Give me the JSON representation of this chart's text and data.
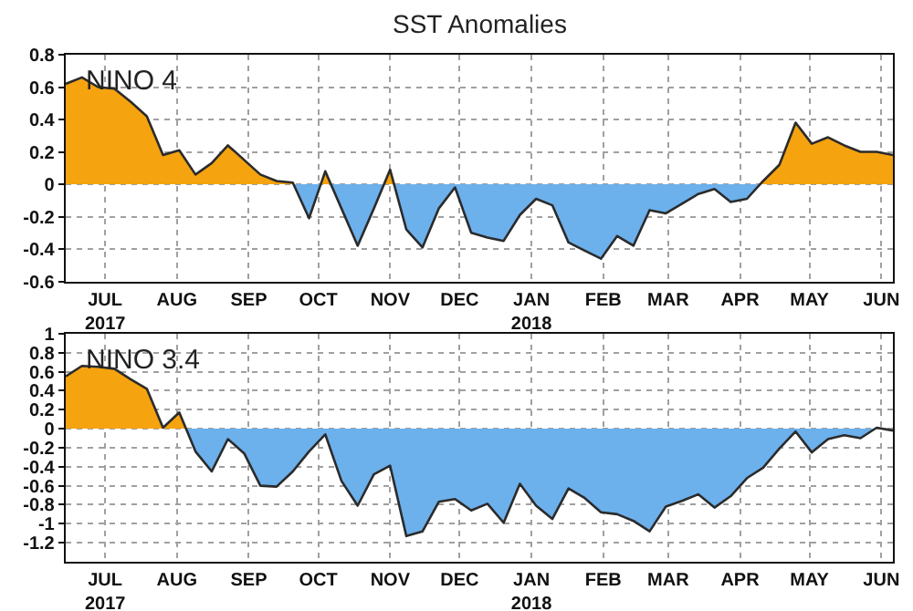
{
  "chart_data": [
    {
      "type": "area",
      "title": "SST Anomalies",
      "annotations": [
        "NINO 4"
      ],
      "x": [
        "2017-06-14",
        "2017-06-21",
        "2017-06-28",
        "2017-07-05",
        "2017-07-12",
        "2017-07-19",
        "2017-07-26",
        "2017-08-02",
        "2017-08-09",
        "2017-08-16",
        "2017-08-23",
        "2017-08-30",
        "2017-09-06",
        "2017-09-13",
        "2017-09-20",
        "2017-09-27",
        "2017-10-04",
        "2017-10-11",
        "2017-10-18",
        "2017-10-25",
        "2017-11-01",
        "2017-11-08",
        "2017-11-15",
        "2017-11-22",
        "2017-11-29",
        "2017-12-06",
        "2017-12-13",
        "2017-12-20",
        "2017-12-27",
        "2018-01-03",
        "2018-01-10",
        "2018-01-17",
        "2018-01-24",
        "2018-01-31",
        "2018-02-07",
        "2018-02-14",
        "2018-02-21",
        "2018-02-28",
        "2018-03-07",
        "2018-03-14",
        "2018-03-21",
        "2018-03-28",
        "2018-04-04",
        "2018-04-11",
        "2018-04-18",
        "2018-04-25",
        "2018-05-02",
        "2018-05-09",
        "2018-05-16",
        "2018-05-23",
        "2018-05-30",
        "2018-06-06"
      ],
      "series": [
        {
          "color": "#2b2b2b",
          "values": [
            0.62,
            0.66,
            0.6,
            0.59,
            0.51,
            0.42,
            0.18,
            0.21,
            0.06,
            0.13,
            0.24,
            0.15,
            0.06,
            0.02,
            0.01,
            -0.21,
            0.08,
            -0.15,
            -0.38,
            -0.15,
            0.09,
            -0.28,
            -0.39,
            -0.15,
            -0.02,
            -0.3,
            -0.33,
            -0.35,
            -0.19,
            -0.09,
            -0.13,
            -0.36,
            -0.41,
            -0.46,
            -0.32,
            -0.38,
            -0.16,
            -0.18,
            -0.12,
            -0.06,
            -0.03,
            -0.11,
            -0.09,
            0.02,
            0.12,
            0.38,
            0.25,
            0.29,
            0.24,
            0.2,
            0.2,
            0.18
          ]
        }
      ],
      "colors": [
        "#f5a30f",
        "#6cb0ec"
      ],
      "xlim": [
        "2017-06-14",
        "2018-06-06"
      ],
      "xticks": [
        {
          "value": "2017-07-01",
          "label": "JUL\n2017"
        },
        {
          "value": "2017-08-01",
          "label": "AUG"
        },
        {
          "value": "2017-09-01",
          "label": "SEP"
        },
        {
          "value": "2017-10-01",
          "label": "OCT"
        },
        {
          "value": "2017-11-01",
          "label": "NOV"
        },
        {
          "value": "2017-12-01",
          "label": "DEC"
        },
        {
          "value": "2018-01-01",
          "label": "JAN\n2018"
        },
        {
          "value": "2018-02-01",
          "label": "FEB"
        },
        {
          "value": "2018-03-01",
          "label": "MAR"
        },
        {
          "value": "2018-04-01",
          "label": "APR"
        },
        {
          "value": "2018-05-01",
          "label": "MAY"
        },
        {
          "value": "2018-06-01",
          "label": "JUN"
        }
      ],
      "ylim": [
        -0.6,
        0.8
      ],
      "yticks": [
        -0.6,
        -0.4,
        -0.2,
        0,
        0.2,
        0.4,
        0.6,
        0.8
      ],
      "grid": true
    },
    {
      "type": "area",
      "annotations": [
        "NINO 3.4"
      ],
      "x": [
        "2017-06-14",
        "2017-06-21",
        "2017-06-28",
        "2017-07-05",
        "2017-07-12",
        "2017-07-19",
        "2017-07-26",
        "2017-08-02",
        "2017-08-09",
        "2017-08-16",
        "2017-08-23",
        "2017-08-30",
        "2017-09-06",
        "2017-09-13",
        "2017-09-20",
        "2017-09-27",
        "2017-10-04",
        "2017-10-11",
        "2017-10-18",
        "2017-10-25",
        "2017-11-01",
        "2017-11-08",
        "2017-11-15",
        "2017-11-22",
        "2017-11-29",
        "2017-12-06",
        "2017-12-13",
        "2017-12-20",
        "2017-12-27",
        "2018-01-03",
        "2018-01-10",
        "2018-01-17",
        "2018-01-24",
        "2018-01-31",
        "2018-02-07",
        "2018-02-14",
        "2018-02-21",
        "2018-02-28",
        "2018-03-07",
        "2018-03-14",
        "2018-03-21",
        "2018-03-28",
        "2018-04-04",
        "2018-04-11",
        "2018-04-18",
        "2018-04-25",
        "2018-05-02",
        "2018-05-09",
        "2018-05-16",
        "2018-05-23",
        "2018-05-30",
        "2018-06-06"
      ],
      "series": [
        {
          "color": "#2b2b2b",
          "values": [
            0.55,
            0.66,
            0.65,
            0.63,
            0.52,
            0.42,
            0.01,
            0.17,
            -0.24,
            -0.45,
            -0.11,
            -0.26,
            -0.6,
            -0.61,
            -0.45,
            -0.24,
            -0.06,
            -0.55,
            -0.81,
            -0.48,
            -0.39,
            -1.13,
            -1.08,
            -0.77,
            -0.74,
            -0.86,
            -0.79,
            -0.99,
            -0.58,
            -0.81,
            -0.95,
            -0.63,
            -0.73,
            -0.88,
            -0.9,
            -0.97,
            -1.08,
            -0.82,
            -0.76,
            -0.69,
            -0.83,
            -0.71,
            -0.52,
            -0.41,
            -0.21,
            -0.03,
            -0.25,
            -0.11,
            -0.07,
            -0.1,
            0.01,
            -0.02
          ]
        }
      ],
      "colors": [
        "#f5a30f",
        "#6cb0ec"
      ],
      "xlim": [
        "2017-06-14",
        "2018-06-06"
      ],
      "xticks": [
        {
          "value": "2017-07-01",
          "label": "JUL\n2017"
        },
        {
          "value": "2017-08-01",
          "label": "AUG"
        },
        {
          "value": "2017-09-01",
          "label": "SEP"
        },
        {
          "value": "2017-10-01",
          "label": "OCT"
        },
        {
          "value": "2017-11-01",
          "label": "NOV"
        },
        {
          "value": "2017-12-01",
          "label": "DEC"
        },
        {
          "value": "2018-01-01",
          "label": "JAN\n2018"
        },
        {
          "value": "2018-02-01",
          "label": "FEB"
        },
        {
          "value": "2018-03-01",
          "label": "MAR"
        },
        {
          "value": "2018-04-01",
          "label": "APR"
        },
        {
          "value": "2018-05-01",
          "label": "MAY"
        },
        {
          "value": "2018-06-01",
          "label": "JUN"
        }
      ],
      "ylim": [
        -1.4,
        1
      ],
      "yticks": [
        -1.2,
        -1,
        -0.8,
        -0.6,
        -0.4,
        -0.2,
        0,
        0.2,
        0.4,
        0.6,
        0.8,
        1
      ],
      "grid": true
    }
  ]
}
